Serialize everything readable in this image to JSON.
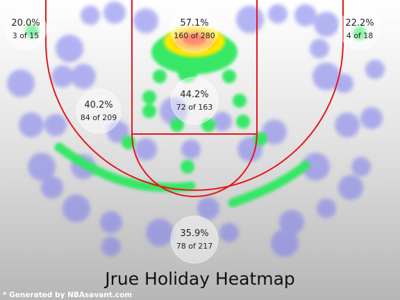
{
  "chart_data": {
    "type": "heatmap",
    "title": "Jrue Holiday Heatmap",
    "credit": "* Generated by NBAsavant.com",
    "colors": {
      "court_lines": "#e8141a",
      "background_top": "#ffffff",
      "background_bottom": "#b6b6b6",
      "hot": "#ff2a00",
      "warm": "#ffe600",
      "mid": "#2ee860",
      "cool": "#7a7aee"
    },
    "zones": [
      {
        "zone": "left-corner-three",
        "pct": "20.0%",
        "made_of": "3 of 15",
        "made": 3,
        "attempts": 15
      },
      {
        "zone": "restricted-area",
        "pct": "57.1%",
        "made_of": "160 of 280",
        "made": 160,
        "attempts": 280
      },
      {
        "zone": "right-corner-three",
        "pct": "22.2%",
        "made_of": "4 of 18",
        "made": 4,
        "attempts": 18
      },
      {
        "zone": "left-mid-range",
        "pct": "40.2%",
        "made_of": "84 of 209",
        "made": 84,
        "attempts": 209
      },
      {
        "zone": "paint-mid-range",
        "pct": "44.2%",
        "made_of": "72 of 163",
        "made": 72,
        "attempts": 163
      },
      {
        "zone": "above-break-three",
        "pct": "35.9%",
        "made_of": "78 of 217",
        "made": 78,
        "attempts": 217
      }
    ]
  }
}
